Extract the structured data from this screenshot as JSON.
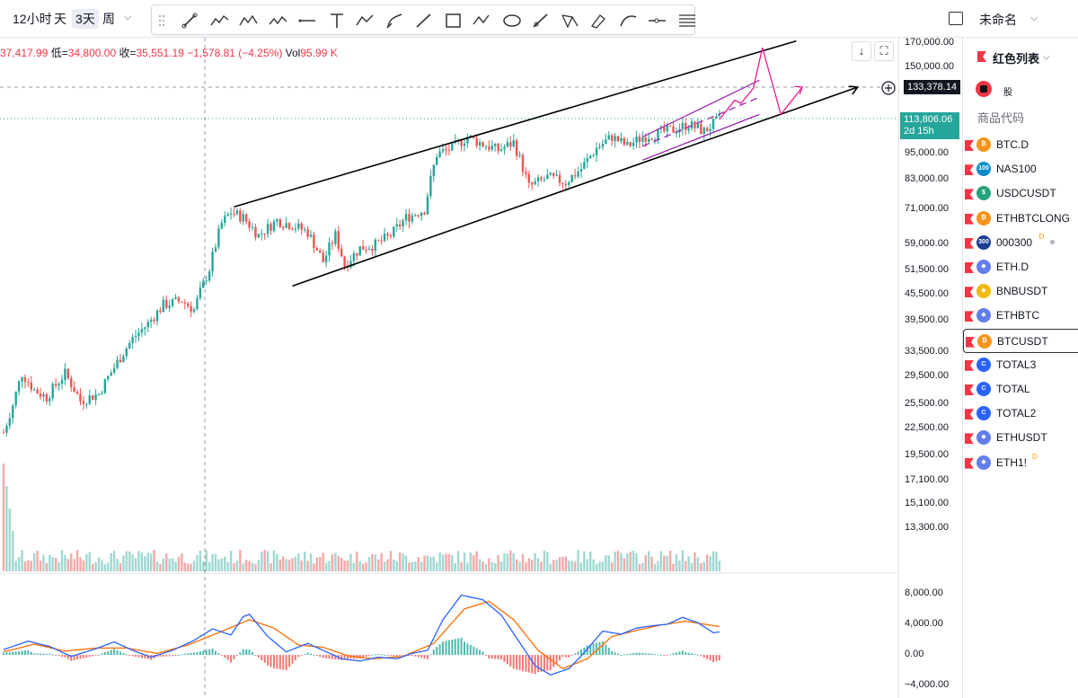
{
  "toolbar": {
    "intervals": [
      "12小时",
      "天",
      "3天",
      "周"
    ],
    "active_interval": "3天",
    "drawing_tools": [
      "cursor-icon",
      "line-icon",
      "elliott-wave-icon",
      "abcde-pattern-icon",
      "horizontal-line-icon",
      "text-icon",
      "path-icon",
      "brush-icon",
      "trend-line-icon",
      "rectangle-icon",
      "abc-pattern-icon",
      "ellipse-icon",
      "ray-icon",
      "xabcd-pattern-icon",
      "highlighter-icon",
      "arc-icon",
      "horizontal-ray-icon",
      "more-tools-icon"
    ],
    "layout_name": "未命名"
  },
  "legend": {
    "open_value": "37,417.99",
    "low_label": "低=",
    "low_value": "34,800.00",
    "close_label": "收=",
    "close_value": "35,551.19",
    "change": "−1,578.81 (−4.25%)",
    "vol_label": "Vol",
    "vol_value": "95.99 K"
  },
  "price_axis": {
    "ticks": [
      "170,000.00",
      "150,000.00",
      "95,000.00",
      "83,000.00",
      "71,000.00",
      "59,000.00",
      "51,500.00",
      "45,500.00",
      "39,500.00",
      "33,500.00",
      "29,500.00",
      "25,500.00",
      "22,500.00",
      "19,500.00",
      "17,100.00",
      "15,100.00",
      "13,300.00"
    ],
    "crosshair_price": "133,378.14",
    "last_price": "113,806.06",
    "countdown": "2d 15h"
  },
  "macd_axis": {
    "ticks": [
      "8,000.00",
      "4,000.00",
      "0.00",
      "−4,000.00"
    ]
  },
  "colors": {
    "up": "#26a69a",
    "down": "#ef5350",
    "macd": "#2962ff",
    "signal": "#ff6d00",
    "drawing_black": "#000000",
    "channel_purple": "#9c27b0",
    "projection_pink": "#e91e8c",
    "last_price_tag": "#26a69a",
    "watchlist_flag": "#f23645"
  },
  "watchlist": {
    "title": "红色列表",
    "sub_label": "股",
    "header": "商品代码",
    "selected": "BTCUSDT",
    "items": [
      {
        "symbol": "BTC.D",
        "icon": "bitcoin-icon",
        "color": "#f7931a",
        "glyph": "₿"
      },
      {
        "symbol": "NAS100",
        "icon": "nasdaq-100-icon",
        "color": "#0a8ac9",
        "glyph": "100"
      },
      {
        "symbol": "USDCUSDT",
        "icon": "usdc-icon",
        "color": "#26a17b",
        "glyph": "$"
      },
      {
        "symbol": "ETHBTCLONG",
        "icon": "bitcoin-icon",
        "color": "#f7931a",
        "glyph": "₿"
      },
      {
        "symbol": "000300",
        "icon": "csi300-icon",
        "color": "#1c3f94",
        "glyph": "300",
        "badge": "D",
        "dot": true
      },
      {
        "symbol": "ETH.D",
        "icon": "ethereum-icon",
        "color": "#627eea",
        "glyph": "◆"
      },
      {
        "symbol": "BNBUSDT",
        "icon": "bnb-icon",
        "color": "#f0b90b",
        "glyph": "◆"
      },
      {
        "symbol": "ETHBTC",
        "icon": "ethereum-bitcoin-icon",
        "color": "#627eea",
        "glyph": "◆"
      },
      {
        "symbol": "BTCUSDT",
        "icon": "bitcoin-tether-icon",
        "color": "#f7931a",
        "glyph": "₿"
      },
      {
        "symbol": "TOTAL3",
        "icon": "crypto-total-icon",
        "color": "#2962ff",
        "glyph": "C"
      },
      {
        "symbol": "TOTAL",
        "icon": "crypto-total-icon",
        "color": "#2962ff",
        "glyph": "C"
      },
      {
        "symbol": "TOTAL2",
        "icon": "crypto-total-icon",
        "color": "#2962ff",
        "glyph": "C"
      },
      {
        "symbol": "ETHUSDT",
        "icon": "ethereum-tether-icon",
        "color": "#627eea",
        "glyph": "◆"
      },
      {
        "symbol": "ETH1!",
        "icon": "ethereum-futures-icon",
        "color": "#627eea",
        "glyph": "◆",
        "badge": "D"
      }
    ]
  },
  "chart_data": {
    "type": "candlestick",
    "title": "",
    "scale": "log",
    "ylim": [
      12000,
      175000
    ],
    "grid": false,
    "anchors": [
      [
        0,
        22000
      ],
      [
        3,
        25500
      ],
      [
        6,
        30000
      ],
      [
        10,
        27500
      ],
      [
        14,
        26500
      ],
      [
        20,
        30000
      ],
      [
        25,
        26000
      ],
      [
        31,
        27000
      ],
      [
        36,
        31000
      ],
      [
        42,
        36000
      ],
      [
        47,
        39000
      ],
      [
        52,
        43000
      ],
      [
        58,
        44000
      ],
      [
        62,
        42000
      ],
      [
        67,
        52000
      ],
      [
        71,
        66000
      ],
      [
        74,
        70000
      ],
      [
        78,
        68000
      ],
      [
        83,
        62000
      ],
      [
        89,
        67000
      ],
      [
        95,
        65000
      ],
      [
        99,
        63000
      ],
      [
        104,
        54000
      ],
      [
        108,
        62000
      ],
      [
        111,
        53000
      ],
      [
        116,
        58000
      ],
      [
        121,
        59000
      ],
      [
        126,
        62000
      ],
      [
        131,
        68000
      ],
      [
        137,
        71000
      ],
      [
        141,
        95000
      ],
      [
        146,
        98000
      ],
      [
        151,
        104000
      ],
      [
        156,
        100000
      ],
      [
        161,
        97000
      ],
      [
        166,
        101000
      ],
      [
        171,
        80000
      ],
      [
        177,
        84000
      ],
      [
        183,
        82000
      ],
      [
        188,
        88000
      ],
      [
        193,
        98000
      ],
      [
        198,
        104000
      ],
      [
        203,
        99000
      ],
      [
        208,
        104000
      ],
      [
        213,
        106000
      ],
      [
        218,
        108000
      ],
      [
        223,
        111000
      ],
      [
        228,
        107000
      ],
      [
        233,
        114000
      ]
    ],
    "projection": [
      [
        233,
        114000
      ],
      [
        238,
        126000
      ],
      [
        240,
        124000
      ],
      [
        244,
        134000
      ],
      [
        247,
        166000
      ],
      [
        253,
        117000
      ],
      [
        260,
        135000
      ]
    ],
    "resistance_line": [
      [
        75,
        72000
      ],
      [
        258,
        172000
      ]
    ],
    "support_line": [
      [
        94,
        47500
      ],
      [
        278,
        135000
      ]
    ],
    "macd": [
      [
        0,
        700
      ],
      [
        8,
        1800
      ],
      [
        15,
        1100
      ],
      [
        22,
        -200
      ],
      [
        30,
        800
      ],
      [
        36,
        1700
      ],
      [
        42,
        600
      ],
      [
        48,
        -300
      ],
      [
        55,
        600
      ],
      [
        62,
        1900
      ],
      [
        68,
        3400
      ],
      [
        74,
        2600
      ],
      [
        78,
        5000
      ],
      [
        80,
        5300
      ],
      [
        86,
        2400
      ],
      [
        92,
        400
      ],
      [
        99,
        1500
      ],
      [
        104,
        600
      ],
      [
        110,
        -500
      ],
      [
        116,
        -800
      ],
      [
        122,
        -300
      ],
      [
        128,
        -500
      ],
      [
        133,
        200
      ],
      [
        138,
        600
      ],
      [
        143,
        4600
      ],
      [
        149,
        7800
      ],
      [
        156,
        7200
      ],
      [
        162,
        5200
      ],
      [
        168,
        1600
      ],
      [
        173,
        -1400
      ],
      [
        178,
        -2600
      ],
      [
        184,
        -1800
      ],
      [
        189,
        300
      ],
      [
        195,
        3100
      ],
      [
        201,
        2700
      ],
      [
        206,
        3500
      ],
      [
        211,
        3800
      ],
      [
        216,
        4000
      ],
      [
        221,
        4900
      ],
      [
        226,
        4200
      ],
      [
        231,
        2900
      ],
      [
        233,
        3000
      ]
    ],
    "signal": [
      [
        0,
        400
      ],
      [
        10,
        1400
      ],
      [
        20,
        500
      ],
      [
        30,
        900
      ],
      [
        40,
        900
      ],
      [
        50,
        200
      ],
      [
        60,
        1300
      ],
      [
        70,
        2900
      ],
      [
        80,
        4600
      ],
      [
        88,
        3500
      ],
      [
        96,
        1300
      ],
      [
        104,
        1000
      ],
      [
        112,
        -100
      ],
      [
        120,
        -500
      ],
      [
        130,
        -200
      ],
      [
        140,
        1500
      ],
      [
        150,
        6000
      ],
      [
        158,
        7000
      ],
      [
        166,
        4600
      ],
      [
        174,
        600
      ],
      [
        182,
        -1800
      ],
      [
        190,
        -500
      ],
      [
        198,
        2400
      ],
      [
        206,
        3200
      ],
      [
        214,
        3900
      ],
      [
        222,
        4400
      ],
      [
        233,
        3700
      ]
    ],
    "macd_ylim": [
      -4800,
      9500
    ],
    "projection_count": 278
  }
}
